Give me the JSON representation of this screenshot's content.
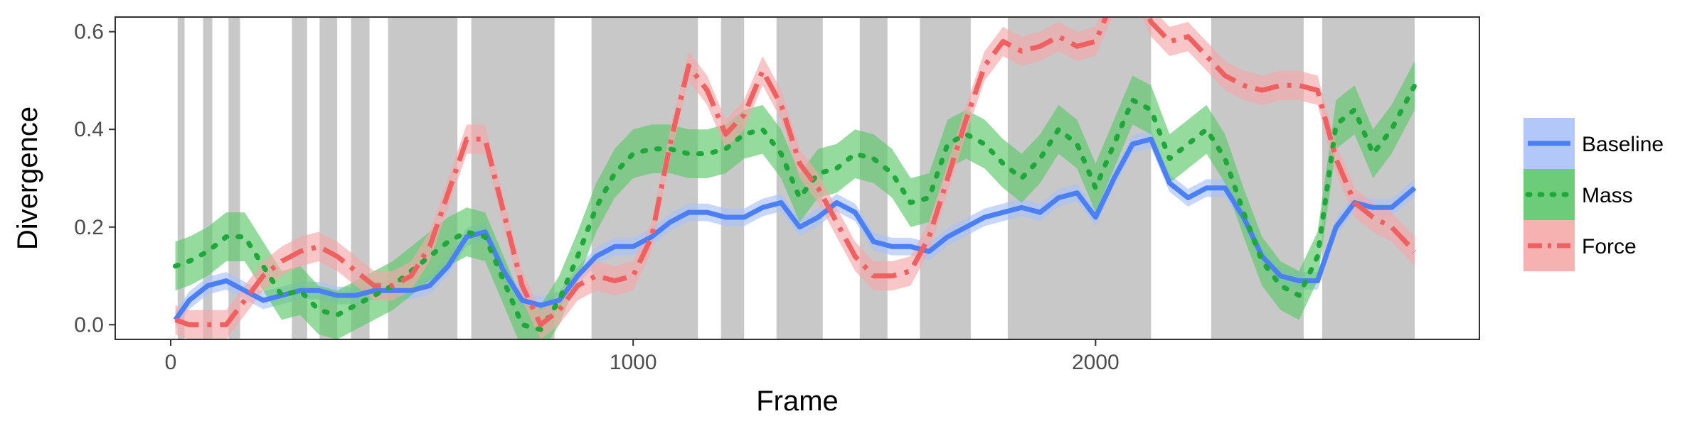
{
  "chart_data": {
    "type": "line",
    "title": "",
    "xlabel": "Frame",
    "ylabel": "Divergence",
    "xlim": [
      -120,
      2830
    ],
    "ylim": [
      -0.03,
      0.63
    ],
    "x_ticks": [
      0,
      1000,
      2000
    ],
    "x_tick_labels": [
      "0",
      "1000",
      "2000"
    ],
    "y_ticks": [
      0.0,
      0.2,
      0.4,
      0.6
    ],
    "y_tick_labels": [
      "0.0",
      "0.2",
      "0.4",
      "0.6"
    ],
    "grid": false,
    "legend_position": "right",
    "shaded_intervals": [
      [
        15,
        30
      ],
      [
        70,
        90
      ],
      [
        125,
        150
      ],
      [
        262,
        295
      ],
      [
        322,
        360
      ],
      [
        390,
        430
      ],
      [
        470,
        620
      ],
      [
        650,
        830
      ],
      [
        910,
        1140
      ],
      [
        1190,
        1240
      ],
      [
        1310,
        1410
      ],
      [
        1490,
        1550
      ],
      [
        1620,
        1730
      ],
      [
        1810,
        2120
      ],
      [
        2250,
        2450
      ],
      [
        2490,
        2690
      ]
    ],
    "series": [
      {
        "name": "Baseline",
        "color": "#4a7ff5",
        "band_color": "#a9c2f7",
        "line_style": "solid",
        "x": [
          10,
          40,
          80,
          120,
          160,
          200,
          240,
          280,
          320,
          360,
          400,
          440,
          480,
          520,
          560,
          600,
          640,
          680,
          720,
          760,
          800,
          840,
          880,
          920,
          960,
          1000,
          1040,
          1080,
          1120,
          1160,
          1200,
          1240,
          1280,
          1320,
          1360,
          1400,
          1440,
          1480,
          1520,
          1560,
          1600,
          1640,
          1680,
          1720,
          1760,
          1800,
          1840,
          1880,
          1920,
          1960,
          2000,
          2040,
          2080,
          2120,
          2160,
          2200,
          2240,
          2280,
          2320,
          2360,
          2400,
          2440,
          2480,
          2520,
          2560,
          2600,
          2640,
          2690
        ],
        "y": [
          0.01,
          0.05,
          0.08,
          0.09,
          0.07,
          0.05,
          0.06,
          0.07,
          0.07,
          0.06,
          0.06,
          0.07,
          0.07,
          0.07,
          0.08,
          0.12,
          0.18,
          0.19,
          0.11,
          0.05,
          0.04,
          0.05,
          0.1,
          0.14,
          0.16,
          0.16,
          0.18,
          0.21,
          0.23,
          0.23,
          0.22,
          0.22,
          0.24,
          0.25,
          0.2,
          0.22,
          0.25,
          0.23,
          0.17,
          0.16,
          0.16,
          0.15,
          0.18,
          0.2,
          0.22,
          0.23,
          0.24,
          0.23,
          0.26,
          0.27,
          0.22,
          0.3,
          0.37,
          0.38,
          0.29,
          0.26,
          0.28,
          0.28,
          0.22,
          0.14,
          0.1,
          0.09,
          0.09,
          0.2,
          0.25,
          0.24,
          0.24,
          0.28
        ],
        "band_half_width": 0.018
      },
      {
        "name": "Mass",
        "color": "#1fa83a",
        "band_color": "#5cc76a",
        "line_style": "dotted",
        "x": [
          10,
          40,
          80,
          120,
          160,
          200,
          240,
          280,
          320,
          360,
          400,
          440,
          480,
          520,
          560,
          600,
          640,
          680,
          720,
          760,
          800,
          840,
          880,
          920,
          960,
          1000,
          1040,
          1080,
          1120,
          1160,
          1200,
          1240,
          1280,
          1320,
          1360,
          1400,
          1440,
          1480,
          1520,
          1560,
          1600,
          1640,
          1680,
          1720,
          1760,
          1800,
          1840,
          1880,
          1920,
          1960,
          2000,
          2040,
          2080,
          2120,
          2160,
          2200,
          2240,
          2280,
          2320,
          2360,
          2400,
          2440,
          2480,
          2520,
          2560,
          2600,
          2640,
          2690
        ],
        "y": [
          0.12,
          0.13,
          0.15,
          0.18,
          0.18,
          0.12,
          0.06,
          0.07,
          0.03,
          0.02,
          0.04,
          0.06,
          0.08,
          0.11,
          0.14,
          0.17,
          0.19,
          0.18,
          0.09,
          0.0,
          -0.01,
          0.05,
          0.14,
          0.24,
          0.31,
          0.35,
          0.36,
          0.36,
          0.35,
          0.35,
          0.36,
          0.39,
          0.4,
          0.35,
          0.26,
          0.31,
          0.32,
          0.35,
          0.34,
          0.31,
          0.25,
          0.26,
          0.37,
          0.39,
          0.37,
          0.33,
          0.3,
          0.34,
          0.4,
          0.37,
          0.28,
          0.37,
          0.46,
          0.44,
          0.34,
          0.37,
          0.4,
          0.34,
          0.23,
          0.13,
          0.08,
          0.06,
          0.14,
          0.41,
          0.44,
          0.35,
          0.4,
          0.49
        ],
        "band_half_width": 0.05
      },
      {
        "name": "Force",
        "color": "#f06060",
        "band_color": "#f5a8a8",
        "line_style": "dashdot",
        "x": [
          10,
          40,
          80,
          120,
          160,
          200,
          240,
          280,
          320,
          360,
          400,
          440,
          480,
          520,
          560,
          600,
          640,
          680,
          720,
          760,
          800,
          840,
          880,
          920,
          960,
          1000,
          1040,
          1080,
          1120,
          1160,
          1200,
          1240,
          1280,
          1320,
          1360,
          1400,
          1440,
          1480,
          1520,
          1560,
          1600,
          1640,
          1680,
          1720,
          1760,
          1800,
          1840,
          1880,
          1920,
          1960,
          2000,
          2040,
          2080,
          2120,
          2160,
          2200,
          2240,
          2280,
          2320,
          2360,
          2400,
          2440,
          2480,
          2520,
          2560,
          2600,
          2640,
          2690
        ],
        "y": [
          0.01,
          0.0,
          0.0,
          0.0,
          0.05,
          0.1,
          0.13,
          0.15,
          0.16,
          0.14,
          0.11,
          0.08,
          0.08,
          0.1,
          0.16,
          0.27,
          0.38,
          0.38,
          0.23,
          0.08,
          0.0,
          0.03,
          0.08,
          0.1,
          0.09,
          0.1,
          0.18,
          0.37,
          0.53,
          0.48,
          0.39,
          0.43,
          0.52,
          0.45,
          0.33,
          0.28,
          0.21,
          0.14,
          0.1,
          0.1,
          0.11,
          0.18,
          0.3,
          0.42,
          0.53,
          0.58,
          0.56,
          0.57,
          0.59,
          0.57,
          0.58,
          0.67,
          0.7,
          0.62,
          0.58,
          0.59,
          0.55,
          0.51,
          0.49,
          0.48,
          0.49,
          0.49,
          0.48,
          0.34,
          0.25,
          0.22,
          0.2,
          0.15
        ],
        "band_half_width": 0.03
      }
    ]
  }
}
